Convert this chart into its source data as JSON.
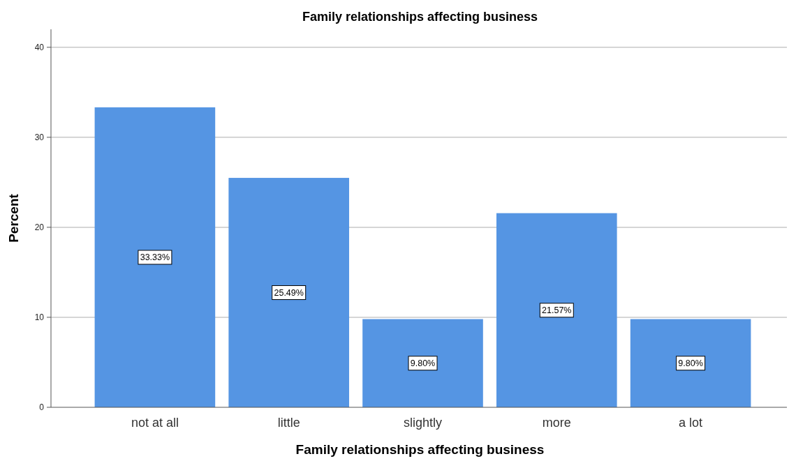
{
  "chart_data": {
    "type": "bar",
    "title": "Family relationships affecting business",
    "xlabel": "Family relationships affecting business",
    "ylabel": "Percent",
    "categories": [
      "not at all",
      "little",
      "slightly",
      "more",
      "a lot"
    ],
    "values": [
      33.33,
      25.49,
      9.8,
      21.57,
      9.8
    ],
    "value_labels": [
      "33.33%",
      "25.49%",
      "9.80%",
      "21.57%",
      "9.80%"
    ],
    "color": "#5595e3",
    "ylim": [
      0,
      42
    ],
    "yticks": [
      0,
      10,
      20,
      30,
      40
    ],
    "grid": "y"
  }
}
